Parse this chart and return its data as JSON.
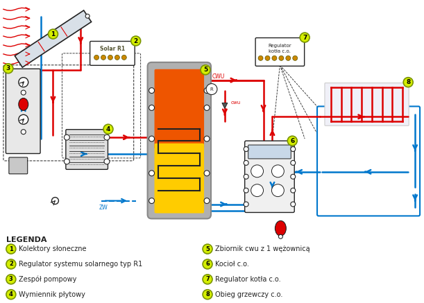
{
  "background_color": "#ffffff",
  "legend_items": [
    {
      "num": "1",
      "text": "Kolektory słoneczne"
    },
    {
      "num": "2",
      "text": "Regulator systemu solarnego typ R1"
    },
    {
      "num": "3",
      "text": "Zespół pompowy"
    },
    {
      "num": "4",
      "text": "Wymiennik płytowy"
    },
    {
      "num": "5",
      "text": "Zbiornik cwu z 1 wężownicą"
    },
    {
      "num": "6",
      "text": "Kocioł c.o."
    },
    {
      "num": "7",
      "text": "Regulator kotła c.o."
    },
    {
      "num": "8",
      "text": "Obieg grzewczy c.o."
    }
  ],
  "label_bg": "#d4ee00",
  "label_border": "#7a9400",
  "red": "#dd0000",
  "blue": "#0077cc",
  "dark": "#222222",
  "gray": "#999999",
  "lgray": "#cccccc",
  "orange": "#ee5500",
  "yellow": "#ffcc00",
  "tank_gray": "#b0b0b0"
}
